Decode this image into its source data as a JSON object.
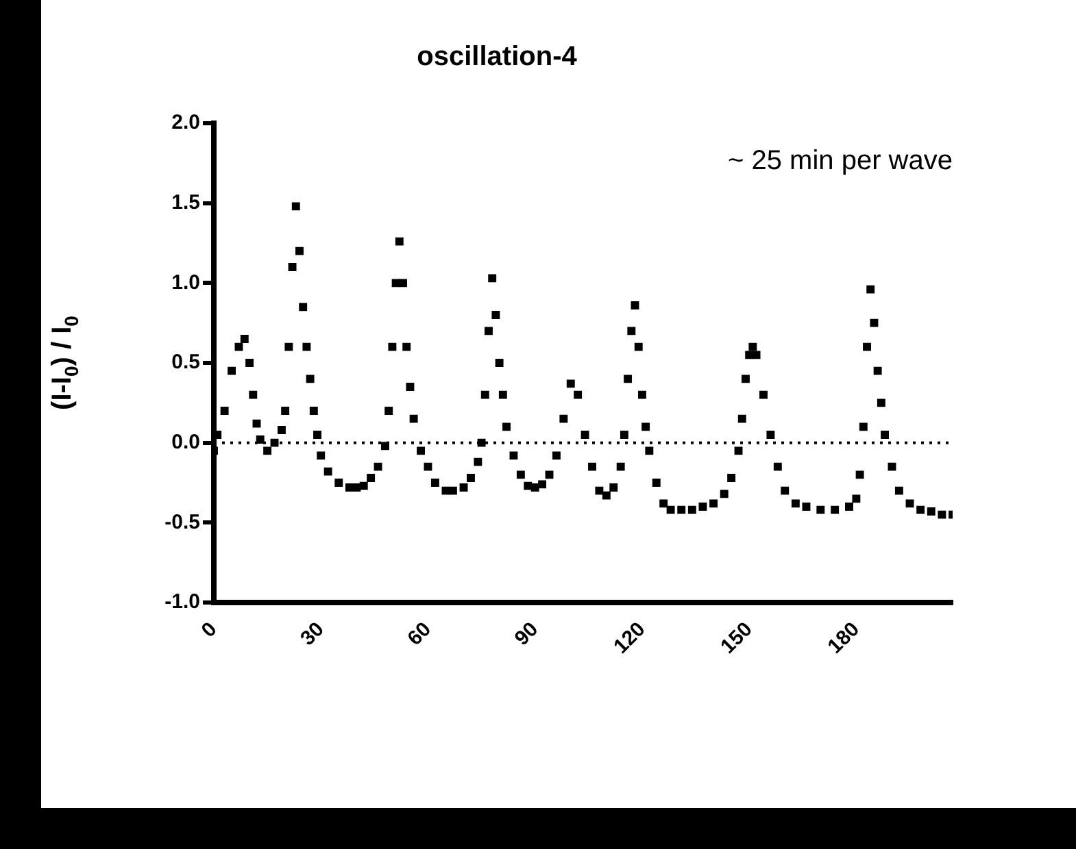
{
  "chart_data": {
    "type": "scatter",
    "title": "oscillation-4",
    "ylabel": "(I-I$_{0}$) / I$_{0}$",
    "annotations": [
      "~ 25 min per wave"
    ],
    "marker": "square",
    "grid": false,
    "legend": false,
    "xlim": [
      0,
      207
    ],
    "xticks": [
      0,
      30,
      60,
      90,
      120,
      150,
      180
    ],
    "ylim": [
      -1,
      2
    ],
    "yticks": [
      {
        "value": -1,
        "label": "-1.0"
      },
      -0.5,
      {
        "value": 0,
        "label": "0.0"
      },
      0.5,
      {
        "value": 1,
        "label": "1.0"
      },
      1.5,
      {
        "value": 2,
        "label": "2.0"
      }
    ],
    "ref_lines": [
      {
        "axis": "y",
        "value": 0,
        "color": "#000000",
        "line_style": "dotted"
      }
    ],
    "series": [
      {
        "color": "#000000",
        "x": [
          0,
          1,
          3,
          5,
          7,
          8.6,
          10,
          11,
          12,
          13,
          15,
          17,
          19,
          20,
          21,
          22,
          23,
          24,
          25,
          26,
          27,
          28,
          29,
          30,
          32,
          35,
          38,
          40,
          42,
          44,
          46,
          48,
          49,
          50,
          51,
          52,
          53,
          54,
          55,
          56,
          58,
          60,
          62,
          65,
          67,
          70,
          72,
          74,
          75,
          76,
          77,
          78,
          79,
          80,
          81,
          82,
          84,
          86,
          88,
          90,
          92,
          94,
          96,
          98,
          100,
          102,
          104,
          106,
          108,
          110,
          112,
          114,
          115,
          116,
          117,
          118,
          119,
          120,
          121,
          122,
          124,
          126,
          128,
          131,
          134,
          137,
          140,
          143,
          145,
          147,
          148,
          149,
          150,
          151,
          152,
          154,
          156,
          158,
          160,
          163,
          166,
          170,
          174,
          178,
          180,
          181,
          182,
          183,
          184,
          185,
          186,
          187,
          188,
          190,
          192,
          195,
          198,
          201,
          204,
          207
        ],
        "values": [
          -0.05,
          0.05,
          0.2,
          0.45,
          0.6,
          0.65,
          0.5,
          0.3,
          0.12,
          0.02,
          -0.05,
          0,
          0.08,
          0.2,
          0.6,
          1.1,
          1.48,
          1.2,
          0.85,
          0.6,
          0.4,
          0.2,
          0.05,
          -0.08,
          -0.18,
          -0.25,
          -0.28,
          -0.28,
          -0.27,
          -0.22,
          -0.15,
          -0.02,
          0.2,
          0.6,
          1.0,
          1.26,
          1.0,
          0.6,
          0.35,
          0.15,
          -0.05,
          -0.15,
          -0.25,
          -0.3,
          -0.3,
          -0.28,
          -0.22,
          -0.12,
          0,
          0.3,
          0.7,
          1.03,
          0.8,
          0.5,
          0.3,
          0.1,
          -0.08,
          -0.2,
          -0.27,
          -0.28,
          -0.26,
          -0.2,
          -0.08,
          0.15,
          0.37,
          0.3,
          0.05,
          -0.15,
          -0.3,
          -0.33,
          -0.28,
          -0.15,
          0.05,
          0.4,
          0.7,
          0.86,
          0.6,
          0.3,
          0.1,
          -0.05,
          -0.25,
          -0.38,
          -0.42,
          -0.42,
          -0.42,
          -0.4,
          -0.38,
          -0.32,
          -0.22,
          -0.05,
          0.15,
          0.4,
          0.55,
          0.6,
          0.55,
          0.3,
          0.05,
          -0.15,
          -0.3,
          -0.38,
          -0.4,
          -0.42,
          -0.42,
          -0.4,
          -0.35,
          -0.2,
          0.1,
          0.6,
          0.96,
          0.75,
          0.45,
          0.25,
          0.05,
          -0.15,
          -0.3,
          -0.38,
          -0.42,
          -0.43,
          -0.45,
          -0.45
        ]
      }
    ]
  }
}
